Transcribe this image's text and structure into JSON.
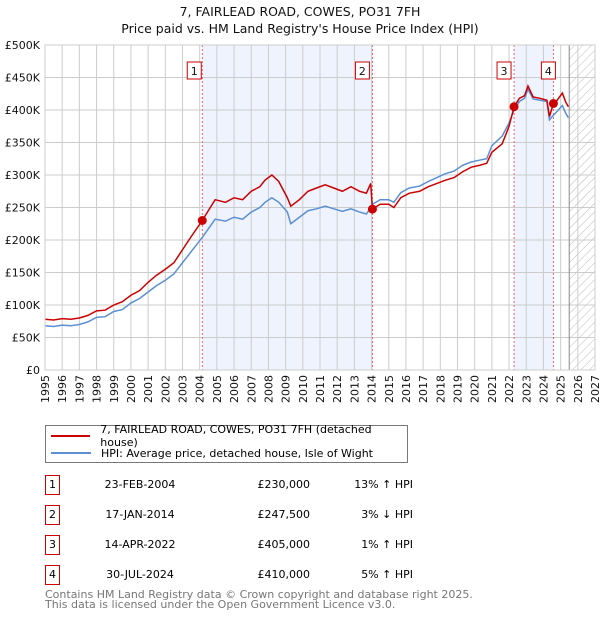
{
  "title": "7, FAIRLEAD ROAD, COWES, PO31 7FH",
  "subtitle": "Price paid vs. HM Land Registry's House Price Index (HPI)",
  "chart_data": {
    "type": "line",
    "title": "7, FAIRLEAD ROAD, COWES, PO31 7FH",
    "subtitle": "Price paid vs. HM Land Registry's House Price Index (HPI)",
    "xlim": [
      1995,
      2027
    ],
    "ylim": [
      0,
      500000
    ],
    "x_ticks": [
      "1995",
      "1996",
      "1997",
      "1998",
      "1999",
      "2000",
      "2001",
      "2002",
      "2003",
      "2004",
      "2005",
      "2006",
      "2007",
      "2008",
      "2009",
      "2010",
      "2011",
      "2012",
      "2013",
      "2014",
      "2015",
      "2016",
      "2017",
      "2018",
      "2019",
      "2020",
      "2021",
      "2022",
      "2023",
      "2024",
      "2025",
      "2026",
      "2027"
    ],
    "y_ticks": [
      {
        "v": 0,
        "label": "£0"
      },
      {
        "v": 50000,
        "label": "£50K"
      },
      {
        "v": 100000,
        "label": "£100K"
      },
      {
        "v": 150000,
        "label": "£150K"
      },
      {
        "v": 200000,
        "label": "£200K"
      },
      {
        "v": 250000,
        "label": "£250K"
      },
      {
        "v": 300000,
        "label": "£300K"
      },
      {
        "v": 350000,
        "label": "£350K"
      },
      {
        "v": 400000,
        "label": "£400K"
      },
      {
        "v": 450000,
        "label": "£450K"
      },
      {
        "v": 500000,
        "label": "£500K"
      }
    ],
    "grid": true,
    "forecast_hatch_from": 2025.5,
    "shaded_ranges": [
      [
        2004.15,
        2014.05
      ],
      [
        2022.29,
        2024.58
      ]
    ],
    "series": [
      {
        "name": "7, FAIRLEAD ROAD, COWES, PO31 7FH (detached house)",
        "color": "#cc0000",
        "x": [
          1995,
          1995.5,
          1996,
          1996.5,
          1997,
          1997.5,
          1998,
          1998.5,
          1999,
          1999.5,
          2000,
          2000.5,
          2001,
          2001.5,
          2002,
          2002.5,
          2003,
          2003.5,
          2004.15,
          2004.5,
          2004.9,
          2005.5,
          2006,
          2006.5,
          2007,
          2007.5,
          2007.8,
          2008.2,
          2008.6,
          2009.1,
          2009.3,
          2009.8,
          2010.3,
          2010.8,
          2011.3,
          2011.8,
          2012.3,
          2012.8,
          2013.3,
          2013.7,
          2013.95,
          2014.05,
          2014.5,
          2015,
          2015.3,
          2015.7,
          2016.2,
          2016.8,
          2017.3,
          2017.8,
          2018.3,
          2018.8,
          2019.3,
          2019.8,
          2020.3,
          2020.7,
          2021,
          2021.6,
          2022,
          2022.29,
          2022.6,
          2022.9,
          2023.1,
          2023.4,
          2023.8,
          2024.2,
          2024.35,
          2024.58,
          2024.8,
          2025.1,
          2025.3,
          2025.45
        ],
        "y": [
          78000,
          77000,
          79000,
          78000,
          80000,
          84000,
          91000,
          92000,
          100000,
          105000,
          115000,
          122000,
          135000,
          146000,
          155000,
          165000,
          185000,
          205000,
          230000,
          245000,
          262000,
          258000,
          265000,
          262000,
          275000,
          282000,
          292000,
          300000,
          290000,
          265000,
          252000,
          262000,
          275000,
          280000,
          285000,
          280000,
          275000,
          282000,
          275000,
          272000,
          287000,
          247500,
          255000,
          255000,
          250000,
          265000,
          272000,
          275000,
          282000,
          287000,
          292000,
          296000,
          305000,
          312000,
          315000,
          318000,
          335000,
          348000,
          375000,
          405000,
          418000,
          422000,
          437000,
          420000,
          418000,
          415000,
          390000,
          410000,
          415000,
          426000,
          412000,
          405000
        ]
      },
      {
        "name": "HPI: Average price, detached house, Isle of Wight",
        "color": "#5b8fd4",
        "x": [
          1995,
          1995.5,
          1996,
          1996.5,
          1997,
          1997.5,
          1998,
          1998.5,
          1999,
          1999.5,
          2000,
          2000.5,
          2001,
          2001.5,
          2002,
          2002.5,
          2003,
          2003.5,
          2004.15,
          2004.5,
          2004.9,
          2005.5,
          2006,
          2006.5,
          2007,
          2007.5,
          2007.8,
          2008.2,
          2008.6,
          2009.1,
          2009.3,
          2009.8,
          2010.3,
          2010.8,
          2011.3,
          2011.8,
          2012.3,
          2012.8,
          2013.3,
          2013.7,
          2013.95,
          2014.05,
          2014.5,
          2015,
          2015.3,
          2015.7,
          2016.2,
          2016.8,
          2017.3,
          2017.8,
          2018.3,
          2018.8,
          2019.3,
          2019.8,
          2020.3,
          2020.7,
          2021,
          2021.6,
          2022,
          2022.29,
          2022.6,
          2022.9,
          2023.1,
          2023.4,
          2023.8,
          2024.2,
          2024.35,
          2024.58,
          2024.8,
          2025.1,
          2025.3,
          2025.45
        ],
        "y": [
          68000,
          67000,
          69000,
          68000,
          70000,
          74000,
          81000,
          82000,
          90000,
          93000,
          103000,
          110000,
          120000,
          130000,
          138000,
          148000,
          165000,
          182000,
          204000,
          217000,
          232000,
          229000,
          235000,
          232000,
          243000,
          250000,
          258000,
          265000,
          258000,
          243000,
          225000,
          235000,
          245000,
          248000,
          252000,
          248000,
          244000,
          248000,
          243000,
          240000,
          250000,
          255000,
          262000,
          262000,
          258000,
          273000,
          280000,
          283000,
          290000,
          296000,
          302000,
          306000,
          315000,
          320000,
          323000,
          325000,
          345000,
          360000,
          380000,
          400000,
          413000,
          418000,
          432000,
          417000,
          415000,
          413000,
          385000,
          392000,
          398000,
          407000,
          395000,
          388000
        ]
      }
    ]
  },
  "markers": [
    {
      "label": "1",
      "x": 2004.15,
      "y": 230000
    },
    {
      "label": "2",
      "x": 2014.05,
      "y": 247500
    },
    {
      "label": "3",
      "x": 2022.29,
      "y": 405000
    },
    {
      "label": "4",
      "x": 2024.58,
      "y": 410000
    }
  ],
  "legend": {
    "items": [
      {
        "label": "7, FAIRLEAD ROAD, COWES, PO31 7FH (detached house)",
        "color": "#cc0000"
      },
      {
        "label": "HPI: Average price, detached house, Isle of Wight",
        "color": "#5b8fd4"
      }
    ]
  },
  "transactions": [
    {
      "num": "1",
      "date": "23-FEB-2004",
      "price": "£230,000",
      "hpi": "13% ↑ HPI"
    },
    {
      "num": "2",
      "date": "17-JAN-2014",
      "price": "£247,500",
      "hpi": "3% ↓ HPI"
    },
    {
      "num": "3",
      "date": "14-APR-2022",
      "price": "£405,000",
      "hpi": "1% ↑ HPI"
    },
    {
      "num": "4",
      "date": "30-JUL-2024",
      "price": "£410,000",
      "hpi": "5% ↑ HPI"
    }
  ],
  "footer": {
    "line1": "Contains HM Land Registry data © Crown copyright and database right 2025.",
    "line2": "This data is licensed under the Open Government Licence v3.0."
  }
}
